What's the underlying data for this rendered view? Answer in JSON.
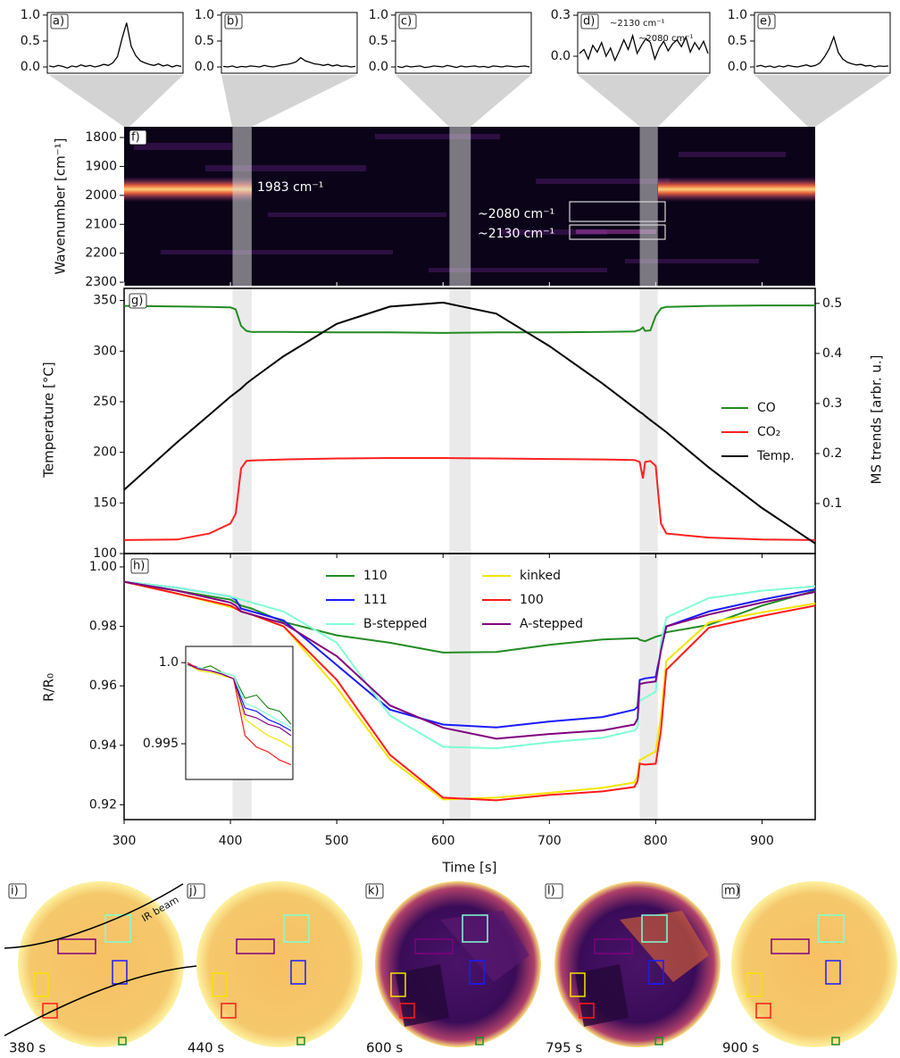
{
  "chart_data": [
    {
      "type": "line",
      "label": "a)",
      "ylim": [
        -0.12,
        1.05
      ],
      "yticks": [
        {
          "value": 0,
          "label": "0.0"
        },
        0.5,
        {
          "value": 1,
          "label": "1.0"
        }
      ],
      "values": [
        0.02,
        0.0,
        0.03,
        0.01,
        -0.02,
        0.02,
        0.0,
        0.04,
        0.01,
        0.03,
        0.0,
        0.02,
        0.05,
        0.03,
        0.08,
        0.2,
        0.55,
        0.85,
        0.4,
        0.22,
        0.12,
        0.08,
        0.05,
        0.03,
        0.06,
        0.02,
        0.04,
        0.0,
        0.03,
        0.01
      ],
      "color": "#000000"
    },
    {
      "type": "line",
      "label": "b)",
      "ylim": [
        -0.12,
        1.05
      ],
      "yticks": [
        {
          "value": 0,
          "label": "0.0"
        },
        0.5,
        {
          "value": 1,
          "label": "1.0"
        }
      ],
      "values": [
        0.01,
        0.0,
        0.02,
        -0.01,
        0.01,
        0.0,
        0.02,
        0.01,
        0.0,
        0.03,
        0.01,
        0.0,
        0.02,
        0.04,
        0.05,
        0.07,
        0.1,
        0.18,
        0.12,
        0.09,
        0.06,
        0.05,
        0.03,
        0.05,
        0.02,
        0.04,
        0.01,
        0.02,
        0.0,
        0.01
      ],
      "color": "#000000"
    },
    {
      "type": "line",
      "label": "c)",
      "ylim": [
        -0.12,
        1.05
      ],
      "yticks": [
        {
          "value": 0,
          "label": "0.0"
        },
        0.5,
        {
          "value": 1,
          "label": "1.0"
        }
      ],
      "values": [
        0.01,
        -0.01,
        0.02,
        0.0,
        0.01,
        0.02,
        -0.01,
        0.0,
        0.02,
        0.01,
        0.0,
        0.03,
        0.01,
        -0.01,
        0.02,
        0.0,
        0.01,
        0.02,
        0.0,
        0.01,
        -0.01,
        0.02,
        0.01,
        0.0,
        0.02,
        0.01,
        0.0,
        0.01,
        0.02,
        0.0
      ],
      "color": "#000000"
    },
    {
      "type": "line",
      "label": "d)",
      "ylim": [
        -0.124,
        0.32
      ],
      "yticks": [
        {
          "value": 0,
          "label": "0.0"
        },
        0.3
      ],
      "annotations": [
        "~2130 cm⁻¹",
        "~2080 cm⁻¹"
      ],
      "values": [
        0.02,
        0.05,
        -0.02,
        0.08,
        0.03,
        0.1,
        0.0,
        0.06,
        -0.03,
        0.04,
        0.12,
        0.05,
        0.15,
        0.02,
        0.08,
        0.13,
        0.1,
        -0.02,
        0.06,
        0.11,
        0.04,
        0.09,
        0.12,
        0.07,
        0.14,
        0.03,
        0.1,
        0.05,
        0.11,
        0.02
      ],
      "color": "#000000"
    },
    {
      "type": "line",
      "label": "e)",
      "ylim": [
        -0.12,
        1.05
      ],
      "yticks": [
        {
          "value": 0,
          "label": "0.0"
        },
        0.5,
        {
          "value": 1,
          "label": "1.0"
        }
      ],
      "values": [
        0.01,
        0.03,
        0.0,
        0.02,
        -0.01,
        0.02,
        0.0,
        0.03,
        0.01,
        0.0,
        0.02,
        0.04,
        0.01,
        0.03,
        0.08,
        0.2,
        0.35,
        0.58,
        0.28,
        0.15,
        0.09,
        0.06,
        0.04,
        0.05,
        0.02,
        0.03,
        0.0,
        0.02,
        0.01,
        0.02
      ],
      "color": "#000000"
    },
    {
      "type": "heatmap",
      "label": "f)",
      "ylabel": "Wavenumber [cm⁻¹]",
      "xlim": [
        300,
        950
      ],
      "xticks": [
        300,
        400,
        500,
        600,
        700,
        800,
        900
      ],
      "ylim": [
        2312,
        1763
      ],
      "yticks": [
        1800,
        1900,
        2000,
        2100,
        2200,
        2300
      ],
      "annotations": [
        "1983 cm⁻¹",
        "~2080 cm⁻¹",
        "~2130 cm⁻¹"
      ]
    },
    {
      "type": "line",
      "label": "g)",
      "ylabel": "Temperature [°C]",
      "y2label": "MS trends [arbr. u.]",
      "xlim": [
        300,
        950
      ],
      "xticks": [
        300,
        400,
        500,
        600,
        700,
        800,
        900
      ],
      "ylim": [
        100,
        362
      ],
      "yticks": [
        100,
        150,
        200,
        250,
        300,
        350
      ],
      "y2lim": [
        0,
        0.53
      ],
      "y2ticks": [
        0.1,
        0.2,
        0.3,
        0.4,
        0.5
      ],
      "legend": "right",
      "x": [
        300,
        350,
        380,
        400,
        405,
        410,
        415,
        420,
        450,
        500,
        550,
        600,
        650,
        700,
        750,
        780,
        785,
        788,
        790,
        795,
        800,
        805,
        810,
        850,
        900,
        950
      ],
      "series": [
        {
          "name": "CO",
          "color": "#228b22",
          "axis": "y2",
          "values": [
            0.495,
            0.494,
            0.493,
            0.492,
            0.488,
            0.455,
            0.445,
            0.443,
            0.443,
            0.442,
            0.442,
            0.441,
            0.442,
            0.442,
            0.443,
            0.444,
            0.447,
            0.452,
            0.445,
            0.446,
            0.475,
            0.49,
            0.493,
            0.495,
            0.496,
            0.496
          ]
        },
        {
          "name": "CO₂",
          "color": "#ff2020",
          "axis": "y2",
          "values": [
            0.027,
            0.028,
            0.04,
            0.06,
            0.08,
            0.17,
            0.185,
            0.186,
            0.188,
            0.19,
            0.191,
            0.191,
            0.19,
            0.189,
            0.188,
            0.187,
            0.183,
            0.15,
            0.183,
            0.185,
            0.175,
            0.06,
            0.04,
            0.032,
            0.028,
            0.027
          ]
        },
        {
          "name": "Temp.",
          "color": "#000000",
          "values": [
            163,
            210,
            237,
            255,
            259,
            263,
            268,
            272,
            295,
            327,
            344,
            348,
            337,
            305,
            268,
            244,
            240,
            238,
            236,
            232,
            228,
            224,
            220,
            185,
            145,
            110
          ]
        }
      ]
    },
    {
      "type": "line",
      "label": "h)",
      "ylabel": "R/R₀",
      "xlabel": "Time [s]",
      "xlim": [
        300,
        950
      ],
      "xticks": [
        300,
        400,
        500,
        600,
        700,
        800,
        900
      ],
      "ylim": [
        0.915,
        1.0045
      ],
      "yticks": [
        {
          "value": 1,
          "label": "1.00"
        },
        0.98,
        0.96,
        0.94,
        0.92
      ],
      "legend": "upper center",
      "shaded_spans": [
        [
          402,
          420
        ],
        [
          606,
          626
        ],
        [
          785,
          802
        ]
      ],
      "x": [
        300,
        350,
        400,
        405,
        410,
        420,
        450,
        500,
        550,
        600,
        650,
        700,
        750,
        780,
        783,
        785,
        790,
        800,
        805,
        810,
        850,
        900,
        950
      ],
      "series": [
        {
          "name": "110",
          "color": "#228b22",
          "values": [
            0.995,
            0.992,
            0.989,
            0.988,
            0.987,
            0.986,
            0.9815,
            0.977,
            0.9745,
            0.9712,
            0.9714,
            0.9738,
            0.9756,
            0.976,
            0.976,
            0.9755,
            0.975,
            0.9765,
            0.977,
            0.978,
            0.9805,
            0.987,
            0.992
          ]
        },
        {
          "name": "111",
          "color": "#1a1aff",
          "values": [
            0.995,
            0.993,
            0.99,
            0.989,
            0.986,
            0.985,
            0.982,
            0.967,
            0.952,
            0.947,
            0.946,
            0.948,
            0.9495,
            0.952,
            0.953,
            0.962,
            0.9625,
            0.963,
            0.972,
            0.98,
            0.985,
            0.989,
            0.9925
          ]
        },
        {
          "name": "B-stepped",
          "color": "#7fffd4",
          "values": [
            0.995,
            0.993,
            0.99,
            0.9895,
            0.989,
            0.988,
            0.985,
            0.9745,
            0.95,
            0.9395,
            0.939,
            0.941,
            0.9425,
            0.945,
            0.946,
            0.955,
            0.956,
            0.958,
            0.975,
            0.983,
            0.9895,
            0.992,
            0.9935
          ]
        },
        {
          "name": "kinked",
          "color": "#f5e400",
          "values": [
            0.995,
            0.991,
            0.9865,
            0.986,
            0.985,
            0.984,
            0.98,
            0.9594,
            0.9353,
            0.9218,
            0.9224,
            0.924,
            0.9257,
            0.9275,
            0.93,
            0.935,
            0.936,
            0.938,
            0.95,
            0.9684,
            0.9813,
            0.9847,
            0.9877
          ]
        },
        {
          "name": "100",
          "color": "#ff1a1a",
          "values": [
            0.995,
            0.991,
            0.987,
            0.986,
            0.985,
            0.984,
            0.98,
            0.962,
            0.9368,
            0.9224,
            0.9215,
            0.9233,
            0.9245,
            0.926,
            0.928,
            0.9338,
            0.9335,
            0.9338,
            0.945,
            0.9654,
            0.9795,
            0.9835,
            0.987
          ]
        },
        {
          "name": "A-stepped",
          "color": "#800080",
          "values": [
            0.995,
            0.992,
            0.988,
            0.987,
            0.985,
            0.984,
            0.981,
            0.97,
            0.9534,
            0.9459,
            0.9422,
            0.9438,
            0.945,
            0.947,
            0.949,
            0.9606,
            0.961,
            0.9615,
            0.972,
            0.98,
            0.984,
            0.988,
            0.9916
          ]
        }
      ]
    },
    {
      "type": "line",
      "ylim": [
        0.9928,
        1.001
      ],
      "yticks": [
        {
          "value": 1,
          "label": "1.0"
        },
        0.995
      ],
      "series": [
        {
          "color": "#228b22",
          "values": [
            0.9999,
            0.9996,
            0.9998,
            0.9994,
            0.9992,
            0.9978,
            0.998,
            0.9972,
            0.997,
            0.9962
          ]
        },
        {
          "color": "#1a1aff",
          "values": [
            0.9999,
            0.9997,
            0.9995,
            0.9993,
            0.999,
            0.9972,
            0.997,
            0.9965,
            0.9962,
            0.9958
          ]
        },
        {
          "color": "#7fffd4",
          "values": [
            0.9998,
            0.9997,
            0.9995,
            0.9994,
            0.9992,
            0.9975,
            0.9972,
            0.9968,
            0.9964,
            0.996
          ]
        },
        {
          "color": "#f5e400",
          "values": [
            0.9999,
            0.9995,
            0.9994,
            0.9992,
            0.999,
            0.9965,
            0.996,
            0.9955,
            0.9952,
            0.9948
          ]
        },
        {
          "color": "#ff1a1a",
          "values": [
            1.0,
            0.9996,
            0.9995,
            0.9993,
            0.999,
            0.9955,
            0.9948,
            0.9945,
            0.994,
            0.9937
          ]
        },
        {
          "color": "#800080",
          "values": [
            0.9999,
            0.9996,
            0.9995,
            0.9993,
            0.999,
            0.9968,
            0.9966,
            0.9962,
            0.996,
            0.9955
          ]
        }
      ]
    }
  ],
  "images": [
    {
      "label": "i)",
      "time": "380 s"
    },
    {
      "label": "j)",
      "time": "440 s"
    },
    {
      "label": "k)",
      "time": "600 s"
    },
    {
      "label": "l)",
      "time": "795 s"
    },
    {
      "label": "m)",
      "time": "900 s"
    }
  ],
  "ir_beam_label": "IR beam"
}
